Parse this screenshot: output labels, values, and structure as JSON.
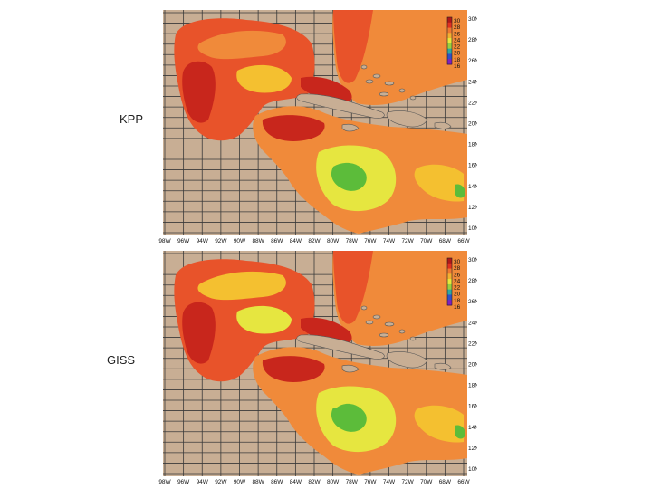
{
  "panels": [
    {
      "label": "KPP",
      "colorbar": {
        "ticks": [
          "30",
          "28",
          "26",
          "24",
          "22",
          "20",
          "18",
          "16"
        ]
      },
      "lat_labels": [
        "30N",
        "28N",
        "26N",
        "24N",
        "22N",
        "20N",
        "18N",
        "16N",
        "14N",
        "12N",
        "10N"
      ],
      "lon_labels": [
        "98W",
        "96W",
        "94W",
        "92W",
        "90W",
        "88W",
        "86W",
        "84W",
        "82W",
        "80W",
        "78W",
        "76W",
        "74W",
        "72W",
        "70W",
        "68W",
        "66W"
      ]
    },
    {
      "label": "GISS",
      "colorbar": {
        "ticks": [
          "30",
          "28",
          "26",
          "24",
          "22",
          "20",
          "18",
          "16"
        ]
      },
      "lat_labels": [
        "30N",
        "28N",
        "26N",
        "24N",
        "22N",
        "20N",
        "18N",
        "16N",
        "14N",
        "12N",
        "10N"
      ],
      "lon_labels": [
        "98W",
        "96W",
        "94W",
        "92W",
        "90W",
        "88W",
        "86W",
        "84W",
        "82W",
        "80W",
        "78W",
        "76W",
        "74W",
        "72W",
        "70W",
        "68W",
        "66W"
      ]
    }
  ],
  "colors": {
    "land": "#c8ae94",
    "grid": "#3a3a3a",
    "warm": "#e8532a",
    "hot": "#c8261c",
    "mid": "#f08a3a",
    "cool": "#f4c030",
    "yellow": "#e6e640",
    "green": "#5cbc3a"
  },
  "colorbar_colors": [
    "#b01818",
    "#e03020",
    "#f07830",
    "#f4b030",
    "#e8e83c",
    "#9ad040",
    "#30a8a0",
    "#3050c8",
    "#8020c0"
  ]
}
